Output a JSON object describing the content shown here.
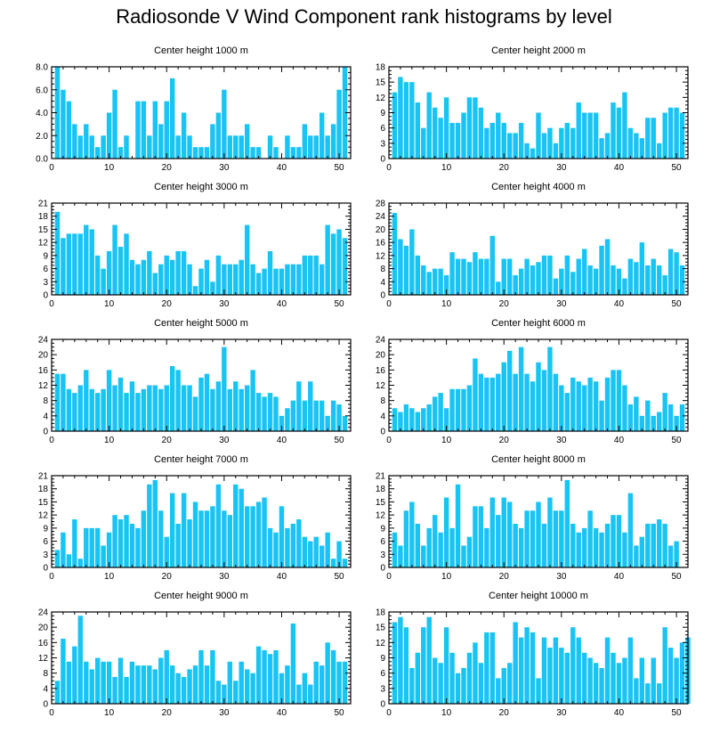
{
  "figure": {
    "title": "Radiosonde V Wind Component rank histograms by level",
    "bar_color": "#18c4f4",
    "x_ticks": [
      "0",
      "10",
      "20",
      "30",
      "40",
      "50"
    ]
  },
  "chart_data": [
    {
      "type": "bar",
      "title": "Center height 1000 m",
      "xlim": [
        0,
        52
      ],
      "ylim": [
        0,
        8
      ],
      "yticks": [
        "0.0",
        "2.0",
        "4.0",
        "6.0",
        "8.0"
      ],
      "values": [
        8,
        6,
        5,
        3,
        2,
        3,
        2,
        1,
        2,
        4,
        6,
        1,
        2,
        0,
        5,
        5,
        2,
        5,
        3,
        5,
        7,
        2,
        4,
        2,
        1,
        1,
        1,
        3,
        4,
        6,
        2,
        2,
        2,
        3,
        1,
        1,
        0,
        2,
        1,
        0,
        2,
        1,
        1,
        3,
        2,
        2,
        4,
        2,
        3,
        6,
        8
      ]
    },
    {
      "type": "bar",
      "title": "Center height 2000 m",
      "xlim": [
        0,
        52
      ],
      "ylim": [
        0,
        18
      ],
      "yticks": [
        "0",
        "3",
        "6",
        "9",
        "12",
        "15",
        "18"
      ],
      "values": [
        13,
        16,
        15,
        15,
        11,
        6,
        13,
        10,
        8,
        12,
        7,
        7,
        9,
        12,
        12,
        10,
        6,
        7,
        9,
        7,
        5,
        5,
        7,
        3,
        2,
        9,
        5,
        6,
        3,
        6,
        7,
        6,
        11,
        9,
        9,
        9,
        4,
        5,
        11,
        10,
        13,
        6,
        5,
        4,
        8,
        8,
        3,
        9,
        10,
        10,
        9
      ]
    },
    {
      "type": "bar",
      "title": "Center height 3000 m",
      "xlim": [
        0,
        52
      ],
      "ylim": [
        0,
        21
      ],
      "yticks": [
        "0",
        "3",
        "6",
        "9",
        "12",
        "15",
        "18",
        "21"
      ],
      "values": [
        19,
        13,
        14,
        14,
        14,
        16,
        15,
        9,
        6,
        10,
        16,
        11,
        14,
        8,
        7,
        8,
        10,
        5,
        7,
        9,
        8,
        10,
        10,
        7,
        2,
        6,
        8,
        3,
        9,
        7,
        7,
        7,
        8,
        16,
        7,
        5,
        6,
        10,
        6,
        6,
        7,
        7,
        7,
        9,
        9,
        9,
        7,
        16,
        14,
        15,
        13
      ]
    },
    {
      "type": "bar",
      "title": "Center height 4000 m",
      "xlim": [
        0,
        52
      ],
      "ylim": [
        0,
        28
      ],
      "yticks": [
        "0",
        "4",
        "8",
        "12",
        "16",
        "20",
        "24",
        "28"
      ],
      "values": [
        25,
        17,
        15,
        20,
        12,
        9,
        7,
        8,
        8,
        6,
        13,
        11,
        11,
        10,
        13,
        11,
        11,
        18,
        4,
        11,
        11,
        6,
        8,
        11,
        9,
        10,
        12,
        12,
        5,
        8,
        12,
        7,
        11,
        14,
        9,
        8,
        15,
        17,
        9,
        8,
        5,
        11,
        10,
        16,
        9,
        11,
        9,
        6,
        14,
        13,
        9
      ]
    },
    {
      "type": "bar",
      "title": "Center height 5000 m",
      "xlim": [
        0,
        52
      ],
      "ylim": [
        0,
        24
      ],
      "yticks": [
        "0",
        "4",
        "8",
        "12",
        "16",
        "20",
        "24"
      ],
      "values": [
        15,
        15,
        11,
        10,
        12,
        16,
        11,
        10,
        11,
        16,
        12,
        14,
        10,
        13,
        10,
        11,
        12,
        12,
        11,
        12,
        17,
        16,
        12,
        12,
        9,
        14,
        15,
        11,
        13,
        22,
        11,
        13,
        11,
        12,
        16,
        10,
        9,
        10,
        9,
        4,
        6,
        8,
        13,
        8,
        13,
        8,
        8,
        4,
        8,
        7,
        4
      ]
    },
    {
      "type": "bar",
      "title": "Center height 6000 m",
      "xlim": [
        0,
        52
      ],
      "ylim": [
        0,
        24
      ],
      "yticks": [
        "0",
        "4",
        "8",
        "12",
        "16",
        "20",
        "24"
      ],
      "values": [
        6,
        5,
        7,
        6,
        5,
        6,
        7,
        9,
        10,
        6,
        11,
        11,
        11,
        12,
        19,
        15,
        14,
        14,
        15,
        18,
        21,
        15,
        22,
        15,
        13,
        18,
        16,
        22,
        15,
        12,
        10,
        14,
        13,
        12,
        14,
        13,
        8,
        14,
        16,
        16,
        12,
        7,
        9,
        4,
        8,
        4,
        5,
        10,
        7,
        4,
        7
      ]
    },
    {
      "type": "bar",
      "title": "Center height 7000 m",
      "xlim": [
        0,
        52
      ],
      "ylim": [
        0,
        21
      ],
      "yticks": [
        "0",
        "3",
        "6",
        "9",
        "12",
        "15",
        "18",
        "21"
      ],
      "values": [
        4,
        8,
        3,
        11,
        2,
        9,
        9,
        9,
        5,
        8,
        12,
        11,
        12,
        10,
        9,
        13,
        19,
        20,
        13,
        7,
        17,
        10,
        17,
        11,
        15,
        13,
        13,
        14,
        19,
        13,
        12,
        19,
        18,
        14,
        14,
        15,
        16,
        9,
        8,
        14,
        9,
        10,
        11,
        7,
        6,
        7,
        5,
        8,
        2,
        6,
        2
      ]
    },
    {
      "type": "bar",
      "title": "Center height 8000 m",
      "xlim": [
        0,
        52
      ],
      "ylim": [
        0,
        21
      ],
      "yticks": [
        "0",
        "3",
        "6",
        "9",
        "12",
        "15",
        "18",
        "21"
      ],
      "values": [
        8,
        5,
        13,
        15,
        10,
        5,
        9,
        12,
        8,
        16,
        9,
        19,
        5,
        7,
        14,
        14,
        9,
        16,
        12,
        16,
        15,
        10,
        9,
        13,
        13,
        15,
        10,
        16,
        13,
        13,
        20,
        10,
        8,
        9,
        13,
        9,
        8,
        10,
        12,
        12,
        8,
        17,
        5,
        7,
        10,
        10,
        11,
        10,
        5,
        6
      ]
    },
    {
      "type": "bar",
      "title": "Center height 9000 m",
      "xlim": [
        0,
        52
      ],
      "ylim": [
        0,
        24
      ],
      "yticks": [
        "0",
        "4",
        "8",
        "12",
        "16",
        "20",
        "24"
      ],
      "values": [
        6,
        17,
        11,
        15,
        23,
        11,
        9,
        12,
        11,
        11,
        7,
        12,
        7,
        11,
        10,
        10,
        10,
        9,
        12,
        14,
        10,
        8,
        7,
        9,
        10,
        14,
        10,
        14,
        6,
        5,
        11,
        6,
        11,
        9,
        8,
        15,
        14,
        13,
        14,
        8,
        10,
        21,
        5,
        8,
        5,
        11,
        10,
        16,
        14,
        11,
        11
      ]
    },
    {
      "type": "bar",
      "title": "Center height 10000 m",
      "xlim": [
        0,
        52
      ],
      "ylim": [
        0,
        18
      ],
      "yticks": [
        "0",
        "3",
        "6",
        "9",
        "12",
        "15",
        "18"
      ],
      "values": [
        16,
        17,
        15,
        7,
        10,
        15,
        17,
        9,
        8,
        15,
        10,
        6,
        7,
        10,
        12,
        8,
        14,
        14,
        5,
        7,
        8,
        16,
        13,
        15,
        14,
        5,
        13,
        11,
        13,
        11,
        10,
        15,
        13,
        10,
        9,
        8,
        7,
        13,
        10,
        8,
        9,
        13,
        5,
        9,
        4,
        9,
        4,
        15,
        11,
        9,
        12,
        13
      ]
    }
  ]
}
